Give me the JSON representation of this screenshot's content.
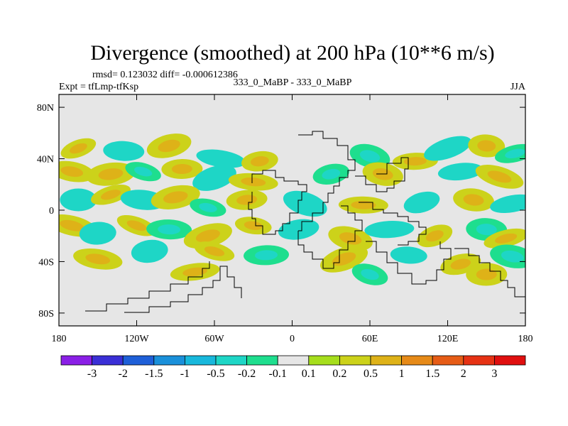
{
  "chart_data": {
    "type": "heatmap",
    "title": "Divergence (smoothed) at 200 hPa (10**6 m/s)",
    "stats": "rmsd= 0.123032 diff= -0.000612386",
    "left_label": "Expt = tfLmp-tfKsp",
    "center_label": "333_0_MaBP - 333_0_MaBP",
    "right_label": "JJA",
    "xlabel": "",
    "ylabel": "",
    "x_range": [
      -180,
      180
    ],
    "y_range": [
      -90,
      90
    ],
    "x_ticks": [
      {
        "value": -180,
        "label": "180"
      },
      {
        "value": -120,
        "label": "120W"
      },
      {
        "value": -60,
        "label": "60W"
      },
      {
        "value": 0,
        "label": "0"
      },
      {
        "value": 60,
        "label": "60E"
      },
      {
        "value": 120,
        "label": "120E"
      },
      {
        "value": 180,
        "label": "180"
      }
    ],
    "y_ticks": [
      {
        "value": 80,
        "label": "80N"
      },
      {
        "value": 40,
        "label": "40N"
      },
      {
        "value": 0,
        "label": "0"
      },
      {
        "value": -40,
        "label": "40S"
      },
      {
        "value": -80,
        "label": "80S"
      }
    ],
    "colorbar": {
      "labels": [
        "-3",
        "-2",
        "-1.5",
        "-1",
        "-0.5",
        "-0.2",
        "-0.1",
        "0.1",
        "0.2",
        "0.5",
        "1",
        "1.5",
        "2",
        "3"
      ],
      "colors": [
        "#8a1fe6",
        "#3a2fd6",
        "#1e5fd8",
        "#1a90da",
        "#18b8dc",
        "#1ed6c6",
        "#1ede8e",
        "#e6e6e6",
        "#a6de1c",
        "#ccd21a",
        "#deb218",
        "#e68a18",
        "#e65c16",
        "#e63214",
        "#e00f0f"
      ]
    },
    "fields": [
      {
        "lon": -165,
        "lat": 48,
        "value": 0.3
      },
      {
        "lon": -130,
        "lat": 46,
        "value": -0.3
      },
      {
        "lon": -95,
        "lat": 50,
        "value": 0.2
      },
      {
        "lon": -55,
        "lat": 40,
        "value": -0.3
      },
      {
        "lon": -25,
        "lat": 38,
        "value": 0.4
      },
      {
        "lon": 60,
        "lat": 42,
        "value": -0.2
      },
      {
        "lon": 95,
        "lat": 38,
        "value": 0.2
      },
      {
        "lon": 120,
        "lat": 48,
        "value": -0.3
      },
      {
        "lon": 150,
        "lat": 50,
        "value": 0.4
      },
      {
        "lon": 172,
        "lat": 44,
        "value": -0.2
      },
      {
        "lon": -170,
        "lat": 30,
        "value": 0.3
      },
      {
        "lon": -140,
        "lat": 28,
        "value": 0.4
      },
      {
        "lon": -115,
        "lat": 30,
        "value": -0.2
      },
      {
        "lon": -85,
        "lat": 32,
        "value": 0.3
      },
      {
        "lon": -60,
        "lat": 25,
        "value": -0.3
      },
      {
        "lon": -30,
        "lat": 22,
        "value": 0.2
      },
      {
        "lon": 30,
        "lat": 28,
        "value": -0.2
      },
      {
        "lon": 70,
        "lat": 28,
        "value": 0.2
      },
      {
        "lon": 130,
        "lat": 30,
        "value": -0.4
      },
      {
        "lon": 160,
        "lat": 26,
        "value": 0.2
      },
      {
        "lon": -165,
        "lat": 8,
        "value": -0.3
      },
      {
        "lon": -140,
        "lat": 12,
        "value": 0.2
      },
      {
        "lon": -115,
        "lat": 8,
        "value": -0.3
      },
      {
        "lon": -90,
        "lat": 10,
        "value": 0.4
      },
      {
        "lon": -65,
        "lat": 2,
        "value": -0.2
      },
      {
        "lon": -35,
        "lat": 8,
        "value": 0.3
      },
      {
        "lon": 10,
        "lat": 5,
        "value": -0.4
      },
      {
        "lon": 55,
        "lat": 4,
        "value": 0.3
      },
      {
        "lon": 100,
        "lat": 6,
        "value": -0.3
      },
      {
        "lon": 140,
        "lat": 8,
        "value": 0.2
      },
      {
        "lon": 170,
        "lat": 5,
        "value": -0.3
      },
      {
        "lon": -170,
        "lat": -12,
        "value": 0.3
      },
      {
        "lon": -150,
        "lat": -18,
        "value": -0.4
      },
      {
        "lon": -120,
        "lat": -12,
        "value": 0.3
      },
      {
        "lon": -95,
        "lat": -15,
        "value": -0.2
      },
      {
        "lon": -65,
        "lat": -20,
        "value": 0.2
      },
      {
        "lon": -30,
        "lat": -12,
        "value": 0.4
      },
      {
        "lon": 5,
        "lat": -15,
        "value": -0.3
      },
      {
        "lon": 45,
        "lat": -22,
        "value": 0.3
      },
      {
        "lon": 75,
        "lat": -15,
        "value": -0.3
      },
      {
        "lon": 110,
        "lat": -20,
        "value": 0.4
      },
      {
        "lon": 150,
        "lat": -15,
        "value": -0.2
      },
      {
        "lon": 165,
        "lat": -22,
        "value": 0.3
      },
      {
        "lon": -150,
        "lat": -38,
        "value": 0.2
      },
      {
        "lon": -110,
        "lat": -32,
        "value": -0.3
      },
      {
        "lon": -60,
        "lat": -32,
        "value": 0.3
      },
      {
        "lon": -20,
        "lat": -35,
        "value": -0.2
      },
      {
        "lon": 40,
        "lat": -38,
        "value": 0.2
      },
      {
        "lon": 90,
        "lat": -35,
        "value": -0.3
      },
      {
        "lon": 130,
        "lat": -42,
        "value": 0.3
      },
      {
        "lon": 170,
        "lat": -36,
        "value": -0.2
      },
      {
        "lon": -75,
        "lat": -48,
        "value": 0.3
      },
      {
        "lon": 60,
        "lat": -50,
        "value": -0.2
      },
      {
        "lon": 150,
        "lat": -50,
        "value": 0.3
      }
    ]
  }
}
